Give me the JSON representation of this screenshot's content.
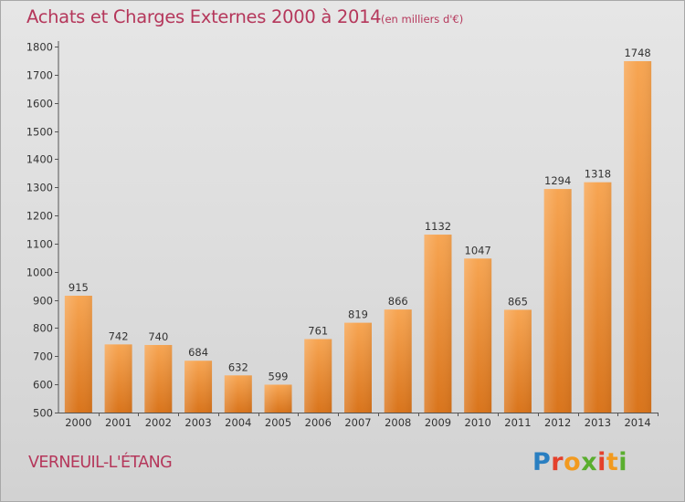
{
  "header": {
    "title": "Achats et Charges Externes 2000 à 2014",
    "subtitle": "(en milliers d'€)"
  },
  "footer": {
    "commune": "VERNEUIL-L'ÉTANG",
    "logo_text": "Proxiti"
  },
  "colors": {
    "title": "#b5375b",
    "bar_light": "#f7a552",
    "bar_dark": "#d9741b",
    "axis": "#555555"
  },
  "chart_data": {
    "type": "bar",
    "categories": [
      "2000",
      "2001",
      "2002",
      "2003",
      "2004",
      "2005",
      "2006",
      "2007",
      "2008",
      "2009",
      "2010",
      "2011",
      "2012",
      "2013",
      "2014"
    ],
    "values": [
      915,
      742,
      740,
      684,
      632,
      599,
      761,
      819,
      866,
      1132,
      1047,
      865,
      1294,
      1318,
      1748
    ],
    "ylim": [
      500,
      1800
    ],
    "yticks": [
      500,
      600,
      700,
      800,
      900,
      1000,
      1100,
      1200,
      1300,
      1400,
      1500,
      1600,
      1700,
      1800
    ],
    "grid": false,
    "title": "Achats et Charges Externes 2000 à 2014",
    "xlabel": "",
    "ylabel": ""
  }
}
